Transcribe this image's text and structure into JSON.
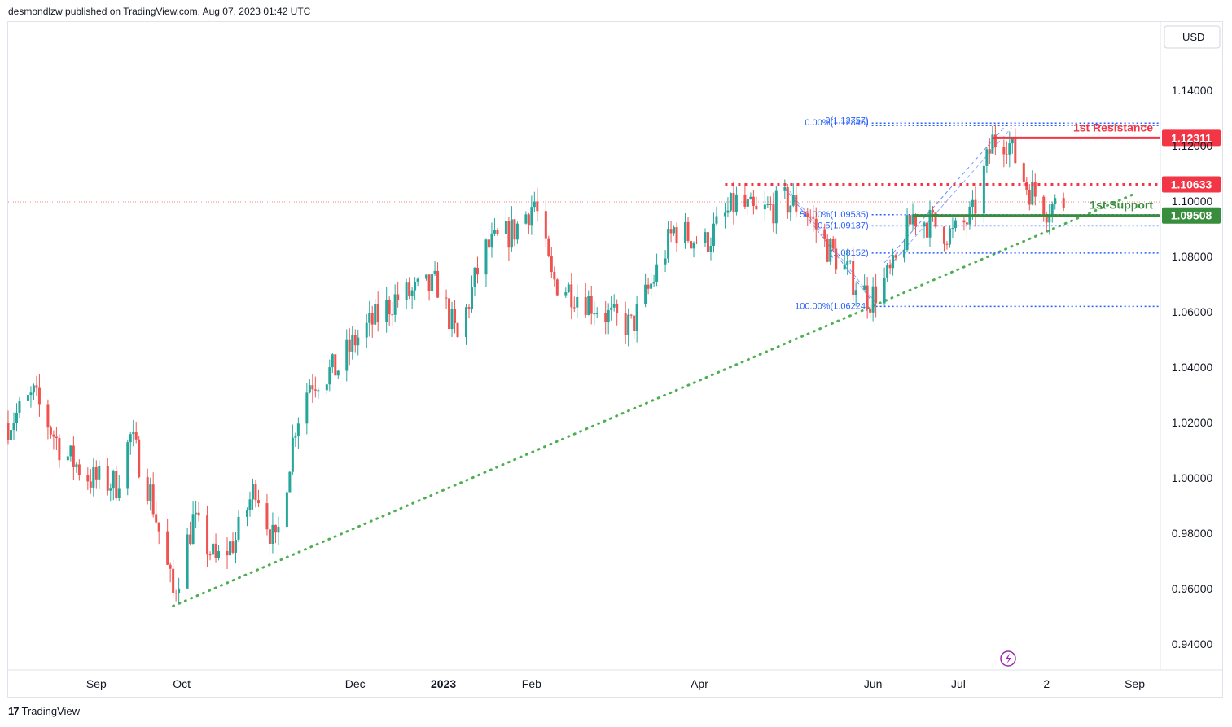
{
  "header": {
    "text": "desmondlzw published on TradingView.com, Aug 07, 2023 01:42 UTC"
  },
  "footer": {
    "logo": "17",
    "brand": "TradingView"
  },
  "currency_box": "USD",
  "colors": {
    "up": "#26a69a",
    "down": "#ef5350",
    "resistance": "#f23645",
    "support": "#388e3c",
    "fib": "#2962ff",
    "trend": "#4caf50"
  },
  "chart_data": {
    "type": "candlestick",
    "title": "",
    "currency": "USD",
    "ylim": [
      0.925,
      1.165
    ],
    "y_ticks": [
      {
        "value": 0.94,
        "label": "0.94000"
      },
      {
        "value": 0.96,
        "label": "0.96000"
      },
      {
        "value": 0.98,
        "label": "0.98000"
      },
      {
        "value": 1.0,
        "label": "1.00000"
      },
      {
        "value": 1.02,
        "label": "1.02000"
      },
      {
        "value": 1.04,
        "label": "1.04000"
      },
      {
        "value": 1.06,
        "label": "1.06000"
      },
      {
        "value": 1.08,
        "label": "1.08000"
      },
      {
        "value": 1.1,
        "label": "1.10000"
      },
      {
        "value": 1.12,
        "label": "1.12000"
      },
      {
        "value": 1.14,
        "label": "1.14000"
      }
    ],
    "x_ticks": [
      {
        "date": "2022-09-01",
        "label": "Sep",
        "bold": false
      },
      {
        "date": "2022-10-01",
        "label": "Oct",
        "bold": false
      },
      {
        "date": "2022-12-01",
        "label": "Dec",
        "bold": false
      },
      {
        "date": "2023-01-01",
        "label": "2023",
        "bold": true
      },
      {
        "date": "2023-02-01",
        "label": "Feb",
        "bold": false
      },
      {
        "date": "2023-04-01",
        "label": "Apr",
        "bold": false
      },
      {
        "date": "2023-06-01",
        "label": "Jun",
        "bold": false
      },
      {
        "date": "2023-07-01",
        "label": "Jul",
        "bold": false
      },
      {
        "date": "2023-08-01",
        "label": "2",
        "bold": false
      },
      {
        "date": "2023-09-01",
        "label": "Sep",
        "bold": false
      }
    ],
    "x_range": [
      "2022-08-01",
      "2023-09-10"
    ],
    "current_price": 1.1,
    "price_path": [
      [
        "2022-08-01",
        1.02
      ],
      [
        "2022-08-10",
        1.03
      ],
      [
        "2022-08-20",
        1.01
      ],
      [
        "2022-08-30",
        1.0
      ],
      [
        "2022-09-08",
        0.998
      ],
      [
        "2022-09-13",
        1.015
      ],
      [
        "2022-09-20",
        0.995
      ],
      [
        "2022-09-28",
        0.958
      ],
      [
        "2022-10-05",
        0.985
      ],
      [
        "2022-10-13",
        0.97
      ],
      [
        "2022-10-20",
        0.978
      ],
      [
        "2022-10-27",
        0.998
      ],
      [
        "2022-11-03",
        0.975
      ],
      [
        "2022-11-10",
        1.02
      ],
      [
        "2022-11-15",
        1.035
      ],
      [
        "2022-11-25",
        1.04
      ],
      [
        "2022-12-01",
        1.05
      ],
      [
        "2022-12-15",
        1.065
      ],
      [
        "2022-12-30",
        1.07
      ],
      [
        "2023-01-06",
        1.05
      ],
      [
        "2023-01-15",
        1.082
      ],
      [
        "2023-01-26",
        1.09
      ],
      [
        "2023-02-02",
        1.1
      ],
      [
        "2023-02-08",
        1.072
      ],
      [
        "2023-02-20",
        1.065
      ],
      [
        "2023-03-01",
        1.058
      ],
      [
        "2023-03-08",
        1.055
      ],
      [
        "2023-03-15",
        1.07
      ],
      [
        "2023-03-23",
        1.09
      ],
      [
        "2023-04-03",
        1.085
      ],
      [
        "2023-04-14",
        1.1
      ],
      [
        "2023-04-21",
        1.095
      ],
      [
        "2023-05-01",
        1.1
      ],
      [
        "2023-05-08",
        1.098
      ],
      [
        "2023-05-15",
        1.085
      ],
      [
        "2023-05-25",
        1.072
      ],
      [
        "2023-05-31",
        1.065
      ],
      [
        "2023-06-08",
        1.075
      ],
      [
        "2023-06-15",
        1.095
      ],
      [
        "2023-06-22",
        1.092
      ],
      [
        "2023-06-29",
        1.088
      ],
      [
        "2023-07-06",
        1.095
      ],
      [
        "2023-07-13",
        1.122
      ],
      [
        "2023-07-18",
        1.123
      ],
      [
        "2023-07-25",
        1.106
      ],
      [
        "2023-08-01",
        1.098
      ],
      [
        "2023-08-07",
        1.1
      ]
    ],
    "levels": [
      {
        "label": "1st Resistance",
        "value": 1.12311,
        "value_label": "1.12311",
        "style": "solid",
        "color": "#f23645",
        "from": "2023-07-13"
      },
      {
        "label": "",
        "value": 1.10633,
        "value_label": "1.10633",
        "style": "dotted",
        "color": "#f23645",
        "from": "2023-04-10"
      },
      {
        "label": "1st Support",
        "value": 1.09508,
        "value_label": "1.09508",
        "style": "solid",
        "color": "#388e3c",
        "from": "2023-06-15"
      }
    ],
    "fib_levels": [
      {
        "label": "0(1.12757)",
        "value": 1.12757
      },
      {
        "label": "0.00%(1.12846)",
        "value": 1.12846
      },
      {
        "label": "50.00%(1.09535)",
        "value": 1.09535
      },
      {
        "label": "0.5(1.09137)",
        "value": 1.09137
      },
      {
        "label": "(1.08152)",
        "value": 1.08152
      },
      {
        "label": "100.00%(1.06224)",
        "value": 1.06224
      }
    ],
    "trendline": {
      "from": [
        "2022-09-28",
        0.954
      ],
      "to": [
        "2023-08-31",
        1.1025
      ]
    },
    "fib_channel_1": {
      "from": [
        "2023-05-01",
        1.105
      ],
      "to": [
        "2023-05-31",
        1.065
      ]
    },
    "fib_channel_2": {
      "from": [
        "2023-06-05",
        1.078
      ],
      "to": [
        "2023-07-18",
        1.128
      ]
    }
  }
}
